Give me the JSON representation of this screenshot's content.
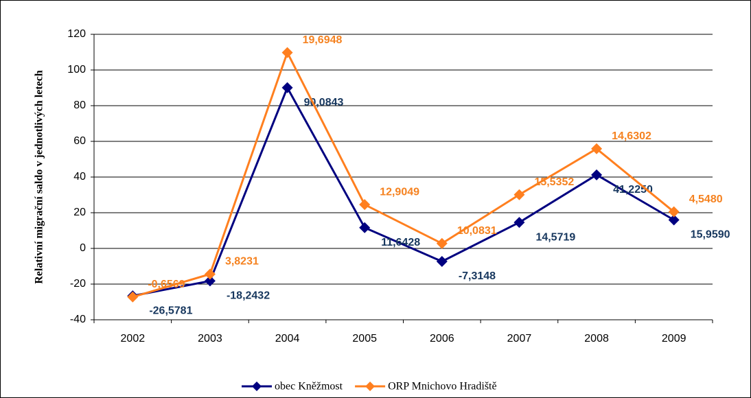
{
  "chart_data": {
    "type": "stacked_line",
    "y_label": "Relativní migrační saldo v jednotlivých letech",
    "categories": [
      "2002",
      "2003",
      "2004",
      "2005",
      "2006",
      "2007",
      "2008",
      "2009"
    ],
    "series": [
      {
        "name": "obec Kněžmost",
        "color": "#000080",
        "label_color": "#17375e",
        "values": [
          -26.5781,
          -18.2432,
          90.0843,
          11.6428,
          -7.3148,
          14.5719,
          41.225,
          15.959
        ],
        "value_labels": [
          "-26,5781",
          "-18,2432",
          "90,0843",
          "11,6428",
          "-7,3148",
          "14,5719",
          "41,2250",
          "15,9590"
        ]
      },
      {
        "name": "ORP Mnichovo Hradiště",
        "color": "#ff7f1f",
        "label_color": "#f58220",
        "values": [
          -0.6569,
          3.8231,
          19.6948,
          12.9049,
          10.0831,
          15.5352,
          14.6302,
          4.548
        ],
        "value_labels": [
          "-0,6569",
          "3,8231",
          "19,6948",
          "12,9049",
          "10,0831",
          "15,5352",
          "14,6302",
          "4,5480"
        ]
      }
    ],
    "ylim": [
      -40,
      120
    ],
    "yticks": [
      -40,
      -20,
      0,
      20,
      40,
      60,
      80,
      100,
      120
    ],
    "grid": true,
    "legend": "bottom"
  }
}
